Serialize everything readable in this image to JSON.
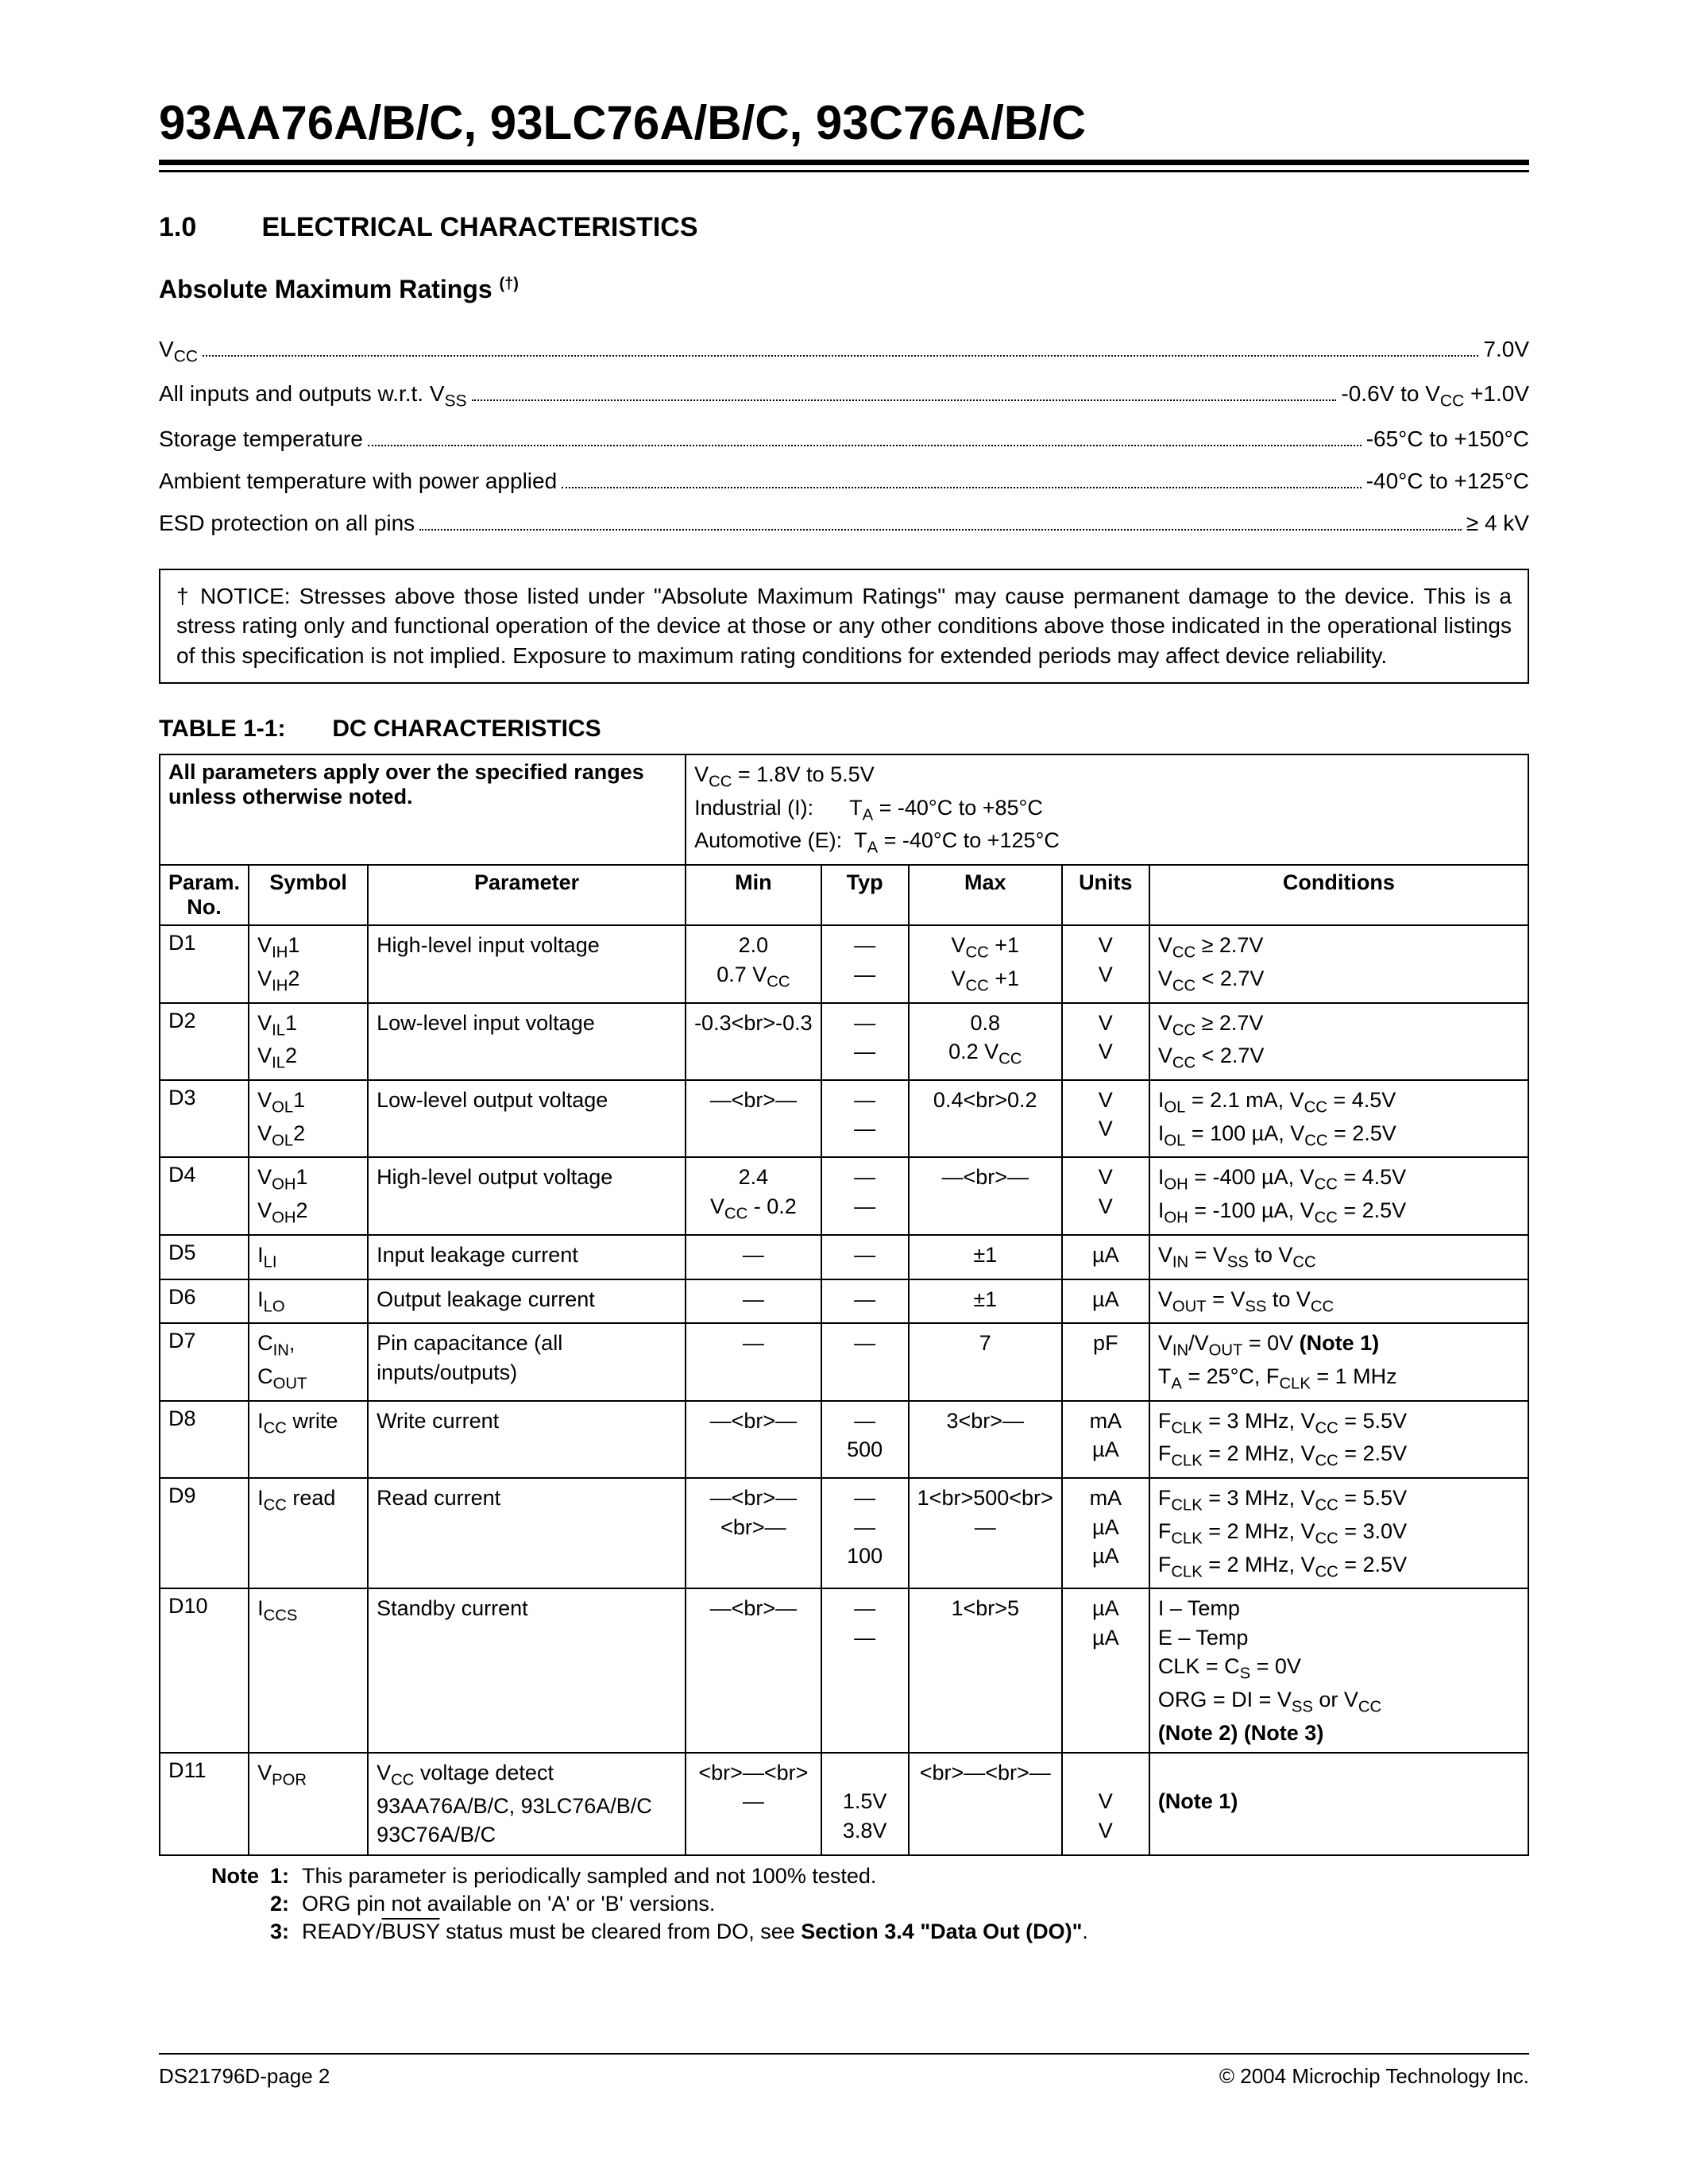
{
  "title": "93AA76A/B/C, 93LC76A/B/C, 93C76A/B/C",
  "section": {
    "num": "1.0",
    "name": "ELECTRICAL CHARACTERISTICS"
  },
  "subsection": "Absolute Maximum Ratings",
  "dagger": "(†)",
  "ratings": [
    {
      "label_html": "V<span class='sub'>CC</span>",
      "value": "7.0V"
    },
    {
      "label_html": "All inputs and outputs w.r.t. V<span class='sub'>SS</span>",
      "value_html": "-0.6V to V<span class='sub'>CC</span> +1.0V"
    },
    {
      "label": "Storage temperature",
      "value": "-65°C to +150°C"
    },
    {
      "label": "Ambient temperature with power applied",
      "value": "-40°C to +125°C"
    },
    {
      "label": "ESD protection on all pins",
      "value": "≥ 4 kV"
    }
  ],
  "notice": "† NOTICE: Stresses above those listed under \"Absolute Maximum Ratings\" may cause permanent damage to the device. This is a stress rating only and functional operation of the device at those or any other conditions above those indicated in the operational listings of this specification is not implied. Exposure to maximum rating conditions for extended periods may affect device reliability.",
  "table_title": {
    "label": "TABLE 1-1:",
    "name": "DC CHARACTERISTICS"
  },
  "table_header": {
    "left": "All parameters apply over the specified ranges unless otherwise noted.",
    "right_html": "V<span class='sub'>CC</span> = 1.8V to 5.5V<br>Industrial (I):&nbsp;&nbsp;&nbsp;&nbsp;&nbsp;&nbsp;T<span class='sub'>A</span> = -40°C to +85°C<br>Automotive (E):&nbsp;&nbsp;T<span class='sub'>A</span> = -40°C to +125°C"
  },
  "columns": [
    "Param. No.",
    "Symbol",
    "Parameter",
    "Min",
    "Typ",
    "Max",
    "Units",
    "Conditions"
  ],
  "rows": [
    {
      "no": "D1",
      "sym_html": "V<span class='sub'>IH</span>1<br>V<span class='sub'>IH</span>2",
      "param": "High-level input voltage",
      "min_html": "2.0<br>0.7 V<span class='sub'>CC</span>",
      "typ": "—<br>—",
      "max_html": "V<span class='sub'>CC</span> +1<br>V<span class='sub'>CC</span> +1",
      "units": "V<br>V",
      "cond_html": "V<span class='sub'>CC</span> ≥ 2.7V<br>V<span class='sub'>CC</span> &lt; 2.7V"
    },
    {
      "no": "D2",
      "sym_html": "V<span class='sub'>IL</span>1<br>V<span class='sub'>IL</span>2",
      "param": "Low-level input voltage",
      "min": "-0.3<br>-0.3",
      "typ": "—<br>—",
      "max_html": "0.8<br>0.2 V<span class='sub'>CC</span>",
      "units": "V<br>V",
      "cond_html": "V<span class='sub'>CC</span> ≥ 2.7V<br>V<span class='sub'>CC</span> &lt; 2.7V"
    },
    {
      "no": "D3",
      "sym_html": "V<span class='sub'>OL</span>1<br>V<span class='sub'>OL</span>2",
      "param": "Low-level output voltage",
      "min": "—<br>—",
      "typ": "—<br>—",
      "max": "0.4<br>0.2",
      "units": "V<br>V",
      "cond_html": "I<span class='sub'>OL</span> = 2.1 mA, V<span class='sub'>CC</span> = 4.5V<br>I<span class='sub'>OL</span> = 100 µA, V<span class='sub'>CC</span> = 2.5V"
    },
    {
      "no": "D4",
      "sym_html": "V<span class='sub'>OH</span>1<br>V<span class='sub'>OH</span>2",
      "param": "High-level output voltage",
      "min_html": "2.4<br>V<span class='sub'>CC</span> - 0.2",
      "typ": "—<br>—",
      "max": "—<br>—",
      "units": "V<br>V",
      "cond_html": "I<span class='sub'>OH</span> = -400 µA, V<span class='sub'>CC</span> = 4.5V<br>I<span class='sub'>OH</span> = -100 µA, V<span class='sub'>CC</span> = 2.5V"
    },
    {
      "no": "D5",
      "sym_html": "I<span class='sub'>LI</span>",
      "param": "Input leakage current",
      "min": "—",
      "typ": "—",
      "max": "±1",
      "units": "µA",
      "cond_html": "V<span class='sub'>IN</span> = V<span class='sub'>SS</span> to V<span class='sub'>CC</span>"
    },
    {
      "no": "D6",
      "sym_html": "I<span class='sub'>LO</span>",
      "param": "Output leakage current",
      "min": "—",
      "typ": "—",
      "max": "±1",
      "units": "µA",
      "cond_html": "V<span class='sub'>OUT</span> = V<span class='sub'>SS</span> to V<span class='sub'>CC</span>"
    },
    {
      "no": "D7",
      "sym_html": "C<span class='sub'>IN</span>,<br>C<span class='sub'>OUT</span>",
      "param": "Pin capacitance (all inputs/outputs)",
      "min": "—",
      "typ": "—",
      "max": "7",
      "units": "pF",
      "cond_html": "V<span class='sub'>IN</span>/V<span class='sub'>OUT</span> = 0V <b>(Note 1)</b><br>T<span class='sub'>A</span> = 25°C, F<span class='sub'>CLK</span> = 1 MHz"
    },
    {
      "no": "D8",
      "sym_html": "I<span class='sub'>CC</span> write",
      "param": "Write current",
      "min": "—<br>—",
      "typ": "—<br>500",
      "max": "3<br>—",
      "units": "mA<br>µA",
      "cond_html": "F<span class='sub'>CLK</span> = 3 MHz, V<span class='sub'>CC</span> = 5.5V<br>F<span class='sub'>CLK</span> = 2 MHz, V<span class='sub'>CC</span> = 2.5V"
    },
    {
      "no": "D9",
      "sym_html": "I<span class='sub'>CC</span> read",
      "param": "Read current",
      "min": "—<br>—<br>—",
      "typ": "—<br>—<br>100",
      "max": "1<br>500<br>—",
      "units": "mA<br>µA<br>µA",
      "cond_html": "F<span class='sub'>CLK</span> = 3 MHz, V<span class='sub'>CC</span> = 5.5V<br>F<span class='sub'>CLK</span> = 2 MHz, V<span class='sub'>CC</span> = 3.0V<br>F<span class='sub'>CLK</span> = 2 MHz, V<span class='sub'>CC</span> = 2.5V"
    },
    {
      "no": "D10",
      "sym_html": "I<span class='sub'>CCS</span>",
      "param": "Standby current",
      "min": "—<br>—",
      "typ": "—<br>—",
      "max": "1<br>5",
      "units": "µA<br>µA",
      "cond_html": "I – Temp<br>E – Temp<br>CLK = C<span class='sub'>S</span> = 0V<br>ORG = DI = V<span class='sub'>SS</span> or V<span class='sub'>CC</span><br><b>(Note 2) (Note 3)</b>"
    },
    {
      "no": "D11",
      "sym_html": "V<span class='sub'>POR</span>",
      "param_html": "V<span class='sub'>CC</span> voltage detect<br>93AA76A/B/C, 93LC76A/B/C<br>93C76A/B/C",
      "min": "<br>—<br>—",
      "typ": "<br>1.5V<br>3.8V",
      "max": "<br>—<br>—",
      "units": "<br>V<br>V",
      "cond_html": "<br><b>(Note 1)</b>"
    }
  ],
  "notes": [
    {
      "prefix": "Note",
      "num": "1:",
      "text": "This parameter is periodically sampled and not 100% tested."
    },
    {
      "prefix": "",
      "num": "2:",
      "text": "ORG pin not available on 'A' or 'B' versions."
    },
    {
      "prefix": "",
      "num": "3:",
      "text_html": "READY/<span class='overline'>BUSY</span> status must be cleared from DO, see <b>Section 3.4 \"Data Out (DO)\"</b>."
    }
  ],
  "footer": {
    "left": "DS21796D-page 2",
    "right": "© 2004 Microchip Technology Inc."
  }
}
